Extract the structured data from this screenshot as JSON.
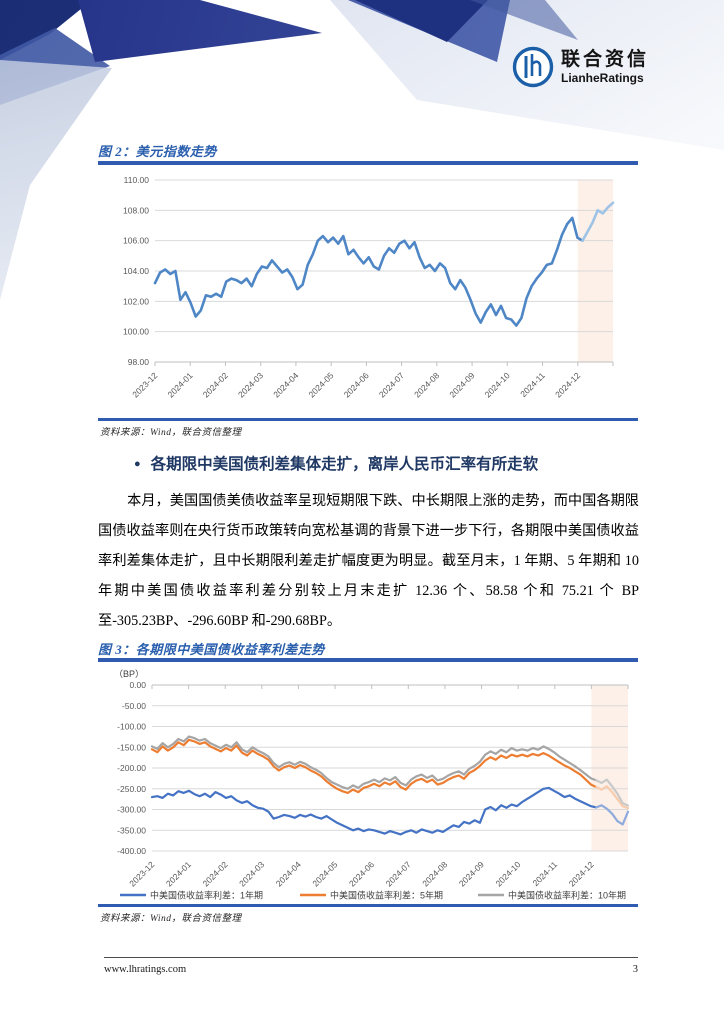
{
  "logo": {
    "cn": "联合资信",
    "en": "LianheRatings"
  },
  "figure2": {
    "title": "图 2：美元指数走势",
    "source": "资料来源：Wind，联合资信整理"
  },
  "section": {
    "bullet": "●",
    "heading": "各期限中美国债利差集体走扩，离岸人民币汇率有所走软",
    "paragraph": "本月，美国国债美债收益率呈现短期限下跌、中长期限上涨的走势，而中国各期限国债收益率则在央行货币政策转向宽松基调的背景下进一步下行，各期限中美国债收益率利差集体走扩，且中长期限利差走扩幅度更为明显。截至月末，1 年期、5 年期和 10 年期中美国债收益率利差分别较上月末走扩 12.36 个、58.58 个和 75.21 个 BP 至-305.23BP、-296.60BP 和-290.68BP。"
  },
  "figure3": {
    "title": "图 3：各期限中美国债收益率利差走势",
    "source": "资料来源：Wind，联合资信整理"
  },
  "footer": {
    "url": "www.lhratings.com",
    "page": "3"
  },
  "chart_data": [
    {
      "type": "line",
      "title": "美元指数走势",
      "x_ticks": [
        "2023-12",
        "2024-01",
        "2024-02",
        "2024-03",
        "2024-04",
        "2024-05",
        "2024-06",
        "2024-07",
        "2024-08",
        "2024-09",
        "2024-10",
        "2024-11",
        "2024-12"
      ],
      "ylim": [
        98,
        110
      ],
      "y_step": 2,
      "grid": true,
      "grid_color": "#d9d9d9",
      "axis_color": "#bfbfbf",
      "label_color": "#595959",
      "x_axis_at": "min",
      "shade_from": 0.923,
      "shade_color": "#fdf0e8",
      "legend": false,
      "series": [
        {
          "name": "美元指数",
          "color": "#4e86c6",
          "light_color": "#9dc3e6",
          "light_from": 84,
          "width": 2.6,
          "values": [
            103.2,
            103.9,
            104.1,
            103.8,
            104.0,
            102.1,
            102.6,
            101.9,
            101.0,
            101.4,
            102.4,
            102.3,
            102.5,
            102.3,
            103.3,
            103.5,
            103.4,
            103.2,
            103.5,
            103.0,
            103.8,
            104.3,
            104.2,
            104.7,
            104.3,
            103.9,
            104.1,
            103.6,
            102.8,
            103.1,
            104.4,
            105.1,
            106.0,
            106.3,
            105.9,
            106.2,
            105.8,
            106.3,
            105.1,
            105.4,
            104.9,
            104.5,
            104.9,
            104.3,
            104.1,
            105.0,
            105.5,
            105.2,
            105.8,
            106.0,
            105.5,
            105.9,
            104.9,
            104.2,
            104.4,
            104.0,
            104.5,
            104.2,
            103.2,
            102.8,
            103.4,
            102.9,
            102.1,
            101.2,
            100.6,
            101.3,
            101.8,
            101.1,
            101.7,
            100.9,
            100.8,
            100.4,
            100.9,
            102.2,
            103.0,
            103.5,
            103.9,
            104.4,
            104.5,
            105.4,
            106.4,
            107.1,
            107.5,
            106.2,
            106.0,
            106.6,
            107.2,
            108.0,
            107.8,
            108.2,
            108.5
          ]
        }
      ]
    },
    {
      "type": "line",
      "title": "各期限中美国债收益率利差走势",
      "ylabel": "（BP）",
      "x_ticks": [
        "2023-12",
        "2024-01",
        "2024-02",
        "2024-03",
        "2024-04",
        "2024-05",
        "2024-06",
        "2024-07",
        "2024-08",
        "2024-09",
        "2024-10",
        "2024-11",
        "2024-12"
      ],
      "ylim": [
        -400,
        0
      ],
      "y_step": 50,
      "grid": true,
      "grid_color": "#d9d9d9",
      "axis_color": "#bfbfbf",
      "label_color": "#595959",
      "x_axis_at": "max",
      "shade_from": 0.923,
      "shade_color": "#fdf0e8",
      "legend": true,
      "series": [
        {
          "name": "中美国债收益率利差：1年期",
          "color": "#4472c4",
          "light_color": "#8faadc",
          "light_from": 84,
          "width": 2.2,
          "values": [
            -270,
            -268,
            -272,
            -262,
            -266,
            -256,
            -260,
            -255,
            -263,
            -268,
            -262,
            -270,
            -258,
            -264,
            -272,
            -268,
            -278,
            -284,
            -280,
            -290,
            -296,
            -298,
            -305,
            -322,
            -318,
            -313,
            -316,
            -320,
            -313,
            -317,
            -312,
            -318,
            -322,
            -316,
            -324,
            -332,
            -338,
            -344,
            -350,
            -346,
            -352,
            -348,
            -350,
            -354,
            -358,
            -352,
            -356,
            -360,
            -354,
            -350,
            -356,
            -348,
            -352,
            -356,
            -350,
            -354,
            -346,
            -338,
            -342,
            -330,
            -334,
            -326,
            -332,
            -300,
            -294,
            -302,
            -290,
            -296,
            -288,
            -292,
            -282,
            -274,
            -266,
            -258,
            -250,
            -248,
            -255,
            -262,
            -270,
            -266,
            -274,
            -280,
            -286,
            -292,
            -295,
            -290,
            -298,
            -310,
            -328,
            -336,
            -305.23
          ]
        },
        {
          "name": "中美国债收益率利差：5年期",
          "color": "#ed7d31",
          "light_color": "#f8cbad",
          "light_from": 84,
          "width": 2.2,
          "values": [
            -155,
            -162,
            -148,
            -158,
            -150,
            -138,
            -145,
            -132,
            -136,
            -142,
            -138,
            -148,
            -154,
            -160,
            -152,
            -158,
            -146,
            -163,
            -170,
            -158,
            -166,
            -172,
            -180,
            -196,
            -206,
            -198,
            -194,
            -200,
            -193,
            -198,
            -206,
            -212,
            -220,
            -232,
            -242,
            -250,
            -256,
            -260,
            -252,
            -258,
            -248,
            -244,
            -238,
            -244,
            -235,
            -240,
            -232,
            -246,
            -252,
            -238,
            -230,
            -226,
            -234,
            -228,
            -240,
            -236,
            -228,
            -222,
            -218,
            -226,
            -212,
            -205,
            -195,
            -182,
            -174,
            -180,
            -170,
            -176,
            -168,
            -172,
            -168,
            -172,
            -166,
            -170,
            -164,
            -170,
            -178,
            -186,
            -194,
            -200,
            -208,
            -216,
            -228,
            -240,
            -246,
            -252,
            -244,
            -258,
            -275,
            -292,
            -296.6
          ]
        },
        {
          "name": "中美国债收益率利差：10年期",
          "color": "#a5a5a5",
          "light_color": "#c9c9c9",
          "light_from": 84,
          "width": 2.2,
          "values": [
            -148,
            -154,
            -140,
            -150,
            -142,
            -130,
            -136,
            -124,
            -128,
            -134,
            -130,
            -140,
            -146,
            -152,
            -144,
            -150,
            -138,
            -155,
            -162,
            -150,
            -158,
            -164,
            -172,
            -188,
            -198,
            -190,
            -186,
            -192,
            -185,
            -190,
            -198,
            -204,
            -212,
            -224,
            -234,
            -240,
            -246,
            -250,
            -242,
            -248,
            -238,
            -234,
            -228,
            -234,
            -225,
            -230,
            -222,
            -236,
            -242,
            -228,
            -220,
            -216,
            -224,
            -218,
            -230,
            -226,
            -218,
            -212,
            -208,
            -216,
            -202,
            -195,
            -185,
            -168,
            -160,
            -166,
            -156,
            -162,
            -152,
            -158,
            -155,
            -158,
            -152,
            -156,
            -148,
            -154,
            -162,
            -172,
            -180,
            -188,
            -196,
            -205,
            -215,
            -225,
            -230,
            -236,
            -228,
            -244,
            -262,
            -285,
            -290.68
          ]
        }
      ]
    }
  ]
}
